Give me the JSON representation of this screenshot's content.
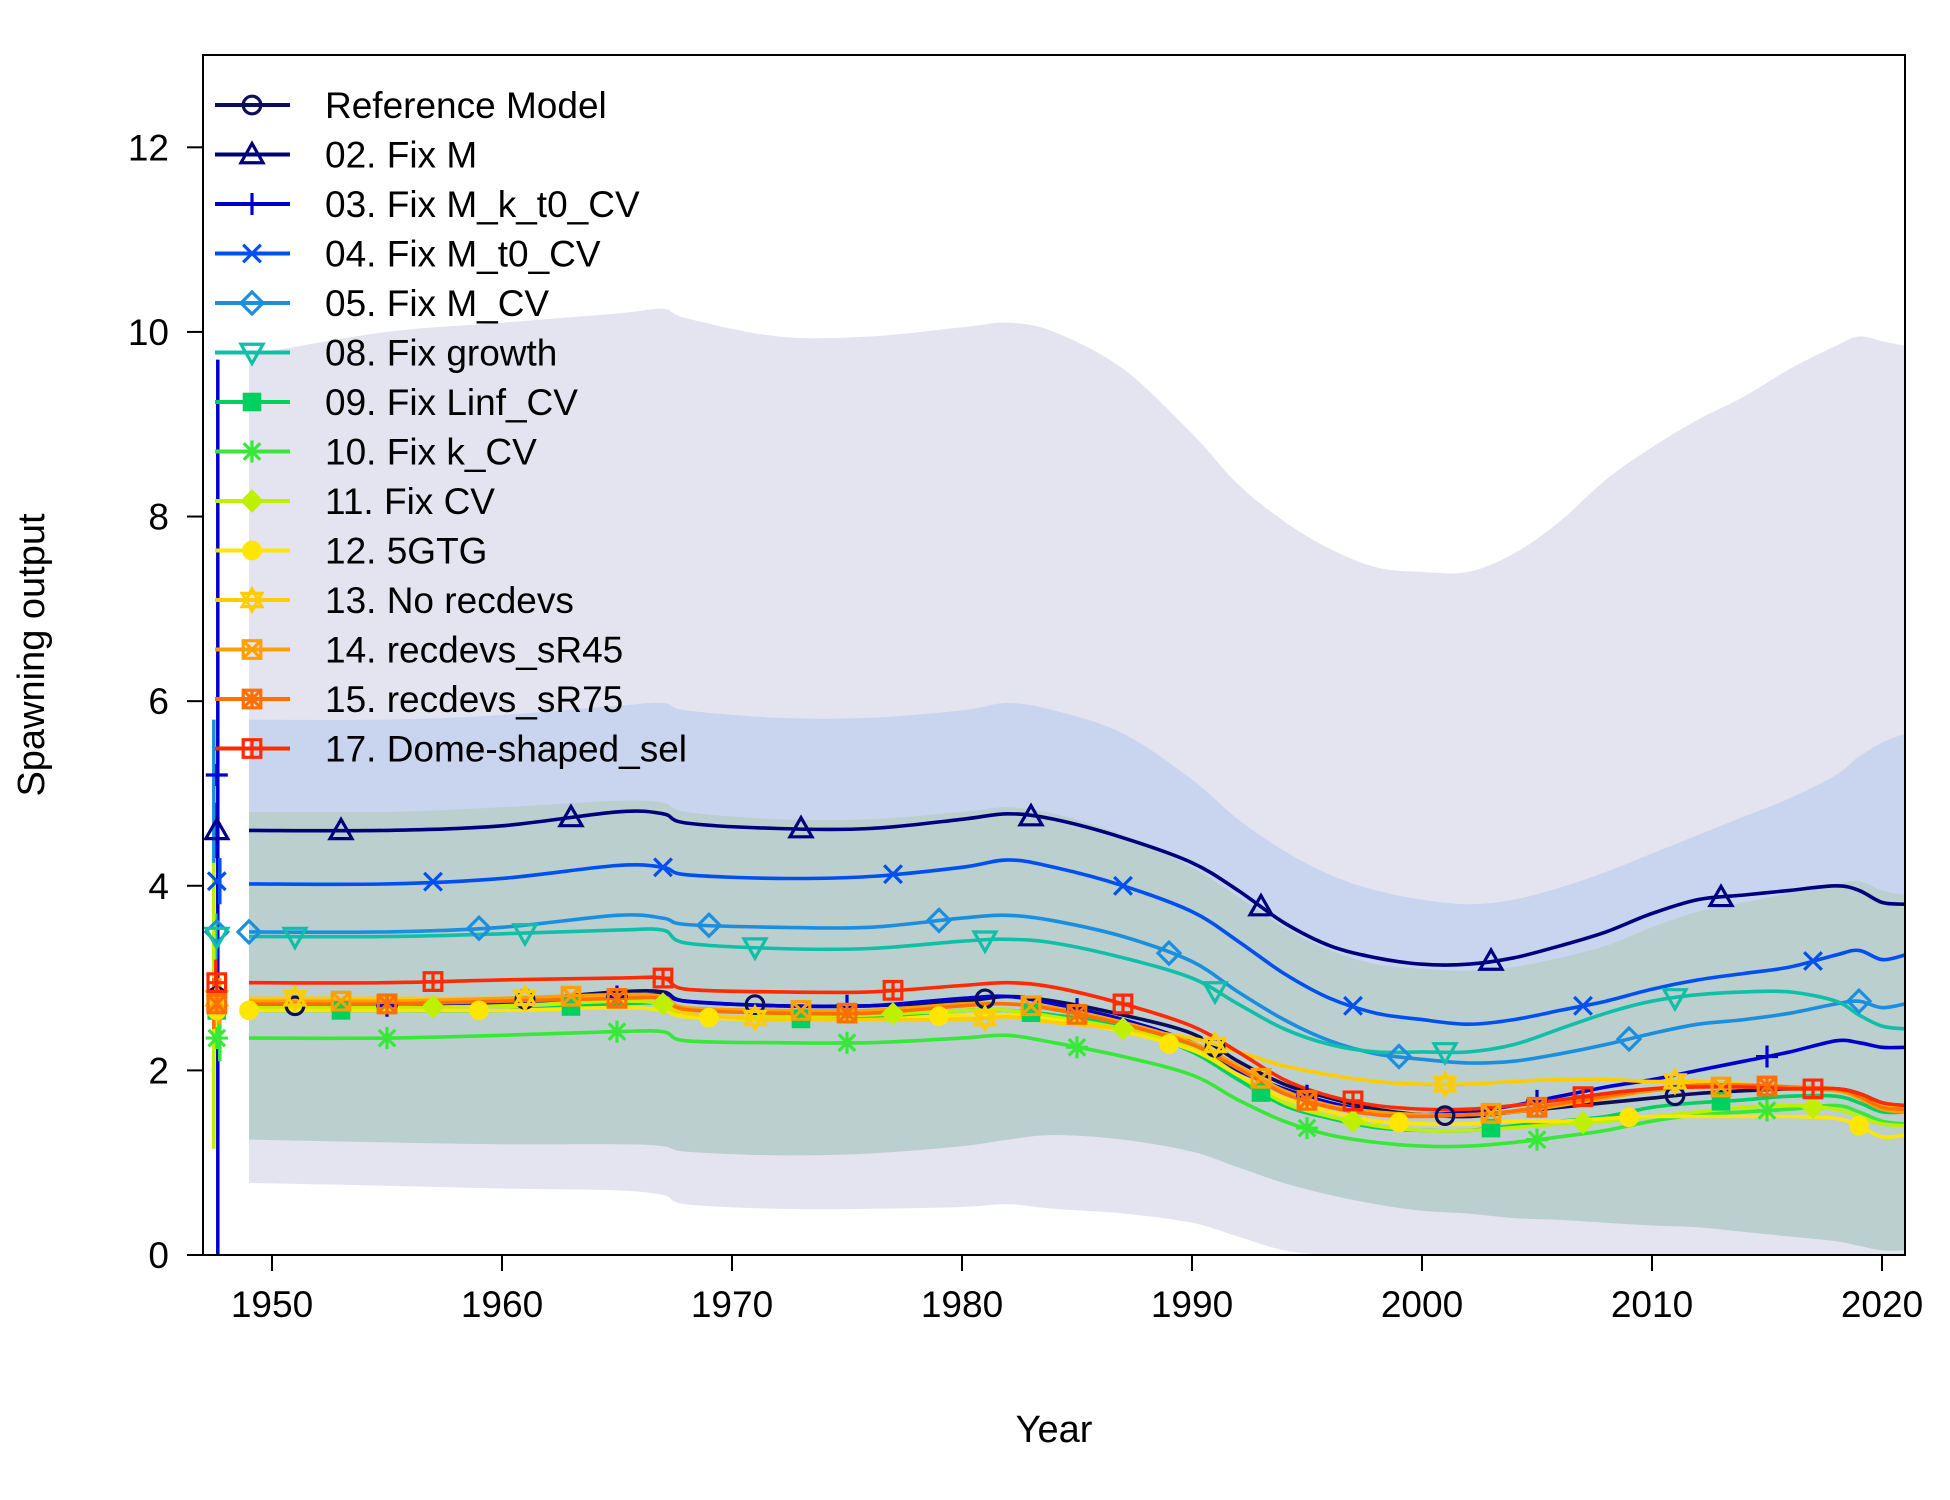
{
  "chart_data": {
    "type": "line",
    "title": "",
    "xlabel": "Year",
    "ylabel": "Spawning output",
    "xlim": [
      1947,
      2021
    ],
    "ylim": [
      0,
      13
    ],
    "xticks": [
      "1950",
      "1960",
      "1970",
      "1980",
      "1990",
      "2000",
      "2010",
      "2020"
    ],
    "yticks": [
      "0",
      "2",
      "4",
      "6",
      "8",
      "10",
      "12"
    ],
    "grid": false,
    "legend_position": "top-left",
    "x": [
      1949,
      1955,
      1960,
      1965,
      1967,
      1968,
      1972,
      1976,
      1980,
      1982,
      1984,
      1987,
      1990,
      1992,
      1994,
      1996,
      1998,
      2000,
      2002,
      2004,
      2006,
      2008,
      2010,
      2012,
      2014,
      2016,
      2018,
      2019,
      2020,
      2021
    ],
    "series": [
      {
        "name": "Reference Model",
        "color": "#0d0d5e",
        "marker": "circle",
        "initial": 2.8,
        "init_lo": 2.6,
        "init_hi": 3.0,
        "values": [
          2.7,
          2.7,
          2.75,
          2.85,
          2.85,
          2.75,
          2.7,
          2.7,
          2.75,
          2.8,
          2.75,
          2.6,
          2.4,
          2.1,
          1.85,
          1.7,
          1.58,
          1.52,
          1.5,
          1.55,
          1.6,
          1.65,
          1.7,
          1.75,
          1.78,
          1.8,
          1.8,
          1.75,
          1.65,
          1.6
        ]
      },
      {
        "name": "02. Fix M",
        "color": "#00007f",
        "marker": "triangle",
        "initial": 4.6,
        "init_lo": 4.3,
        "init_hi": 4.9,
        "values": [
          4.6,
          4.6,
          4.65,
          4.8,
          4.78,
          4.68,
          4.62,
          4.62,
          4.72,
          4.78,
          4.72,
          4.52,
          4.25,
          3.95,
          3.6,
          3.35,
          3.22,
          3.15,
          3.15,
          3.22,
          3.35,
          3.5,
          3.7,
          3.85,
          3.9,
          3.95,
          4.0,
          3.95,
          3.82,
          3.8
        ]
      },
      {
        "name": "03. Fix M_k_t0_CV",
        "color": "#0000cc",
        "marker": "plus",
        "initial": 5.2,
        "init_lo": 0,
        "init_hi": 9.7,
        "values": [
          2.7,
          2.7,
          2.72,
          2.8,
          2.82,
          2.75,
          2.7,
          2.7,
          2.78,
          2.8,
          2.72,
          2.55,
          2.3,
          2.0,
          1.8,
          1.65,
          1.55,
          1.52,
          1.55,
          1.62,
          1.72,
          1.82,
          1.9,
          2.0,
          2.1,
          2.2,
          2.32,
          2.3,
          2.25,
          2.25
        ]
      },
      {
        "name": "04. Fix M_t0_CV",
        "color": "#0050f0",
        "marker": "cross",
        "initial": 4.05,
        "init_lo": 3.8,
        "init_hi": 4.3,
        "values": [
          4.02,
          4.02,
          4.08,
          4.22,
          4.2,
          4.12,
          4.08,
          4.1,
          4.2,
          4.28,
          4.2,
          4.0,
          3.72,
          3.4,
          3.05,
          2.78,
          2.62,
          2.55,
          2.5,
          2.55,
          2.65,
          2.75,
          2.88,
          2.98,
          3.05,
          3.12,
          3.25,
          3.3,
          3.2,
          3.25
        ]
      },
      {
        "name": "05. Fix M_CV",
        "color": "#1a8fe0",
        "marker": "diamond",
        "initial": 3.5,
        "init_lo": 1.2,
        "init_hi": 5.8,
        "values": [
          3.5,
          3.5,
          3.55,
          3.68,
          3.65,
          3.58,
          3.55,
          3.55,
          3.65,
          3.68,
          3.62,
          3.45,
          3.18,
          2.85,
          2.55,
          2.32,
          2.18,
          2.12,
          2.08,
          2.1,
          2.18,
          2.28,
          2.4,
          2.5,
          2.55,
          2.62,
          2.72,
          2.75,
          2.68,
          2.72
        ]
      },
      {
        "name": "08. Fix growth",
        "color": "#10bfa8",
        "marker": "triangle-down",
        "initial": 3.45,
        "init_lo": 3.2,
        "init_hi": 3.7,
        "values": [
          3.45,
          3.45,
          3.48,
          3.52,
          3.52,
          3.38,
          3.32,
          3.32,
          3.4,
          3.42,
          3.38,
          3.22,
          3.0,
          2.72,
          2.45,
          2.28,
          2.2,
          2.2,
          2.2,
          2.28,
          2.45,
          2.62,
          2.75,
          2.82,
          2.85,
          2.85,
          2.75,
          2.6,
          2.48,
          2.45
        ]
      },
      {
        "name": "09. Fix Linf_CV",
        "color": "#00d060",
        "marker": "square",
        "initial": 2.65,
        "init_lo": 2.4,
        "init_hi": 2.9,
        "values": [
          2.65,
          2.65,
          2.65,
          2.72,
          2.72,
          2.6,
          2.55,
          2.58,
          2.65,
          2.65,
          2.6,
          2.48,
          2.2,
          1.9,
          1.62,
          1.48,
          1.38,
          1.35,
          1.35,
          1.4,
          1.45,
          1.5,
          1.6,
          1.65,
          1.68,
          1.72,
          1.72,
          1.65,
          1.55,
          1.55
        ]
      },
      {
        "name": "10. Fix k_CV",
        "color": "#38e838",
        "marker": "asterisk",
        "initial": 2.35,
        "init_lo": 2.1,
        "init_hi": 2.6,
        "values": [
          2.35,
          2.35,
          2.38,
          2.42,
          2.42,
          2.32,
          2.3,
          2.3,
          2.35,
          2.38,
          2.3,
          2.15,
          1.95,
          1.68,
          1.45,
          1.3,
          1.22,
          1.18,
          1.18,
          1.22,
          1.28,
          1.35,
          1.45,
          1.52,
          1.55,
          1.58,
          1.62,
          1.55,
          1.45,
          1.42
        ]
      },
      {
        "name": "11. Fix CV",
        "color": "#bff000",
        "marker": "diamond-filled",
        "initial": 2.7,
        "init_lo": 1.15,
        "init_hi": 4.25,
        "values": [
          2.68,
          2.68,
          2.7,
          2.75,
          2.72,
          2.6,
          2.58,
          2.6,
          2.65,
          2.65,
          2.58,
          2.45,
          2.25,
          1.95,
          1.65,
          1.5,
          1.4,
          1.35,
          1.35,
          1.38,
          1.42,
          1.45,
          1.5,
          1.55,
          1.6,
          1.62,
          1.58,
          1.5,
          1.42,
          1.4
        ]
      },
      {
        "name": "12. 5GTG",
        "color": "#ffe600",
        "marker": "circle-filled",
        "initial": 2.65,
        "init_lo": 2.4,
        "init_hi": 2.9,
        "values": [
          2.65,
          2.65,
          2.65,
          2.68,
          2.65,
          2.58,
          2.55,
          2.55,
          2.6,
          2.6,
          2.55,
          2.42,
          2.22,
          1.95,
          1.7,
          1.55,
          1.45,
          1.42,
          1.42,
          1.45,
          1.45,
          1.48,
          1.5,
          1.5,
          1.5,
          1.5,
          1.48,
          1.4,
          1.28,
          1.3
        ]
      },
      {
        "name": "13. No recdevs",
        "color": "#ffcc00",
        "marker": "star",
        "initial": 2.78,
        "init_lo": 2.55,
        "init_hi": 3.0,
        "values": [
          2.78,
          2.78,
          2.78,
          2.8,
          2.78,
          2.62,
          2.55,
          2.55,
          2.55,
          2.58,
          2.52,
          2.45,
          2.35,
          2.2,
          2.05,
          1.95,
          1.88,
          1.85,
          1.85,
          1.88,
          1.9,
          1.9,
          1.88,
          1.88,
          1.85,
          1.82,
          1.78,
          1.72,
          1.62,
          1.6
        ]
      },
      {
        "name": "14. recdevs_sR45",
        "color": "#ffa000",
        "marker": "square-cross",
        "initial": 2.75,
        "init_lo": 2.5,
        "init_hi": 3.0,
        "values": [
          2.75,
          2.75,
          2.78,
          2.82,
          2.8,
          2.68,
          2.65,
          2.65,
          2.72,
          2.72,
          2.68,
          2.52,
          2.3,
          2.05,
          1.78,
          1.62,
          1.55,
          1.52,
          1.52,
          1.55,
          1.62,
          1.7,
          1.78,
          1.82,
          1.82,
          1.8,
          1.78,
          1.7,
          1.58,
          1.55
        ]
      },
      {
        "name": "15. recdevs_sR75",
        "color": "#ff7000",
        "marker": "square-asterisk",
        "initial": 2.72,
        "init_lo": 2.45,
        "init_hi": 3.0,
        "values": [
          2.72,
          2.72,
          2.75,
          2.78,
          2.78,
          2.66,
          2.62,
          2.62,
          2.7,
          2.72,
          2.66,
          2.5,
          2.28,
          2.02,
          1.75,
          1.6,
          1.52,
          1.5,
          1.52,
          1.56,
          1.64,
          1.72,
          1.8,
          1.84,
          1.84,
          1.82,
          1.8,
          1.72,
          1.6,
          1.58
        ]
      },
      {
        "name": "17. Dome-shaped_sel",
        "color": "#ff2a00",
        "marker": "square-plus",
        "initial": 2.95,
        "init_lo": 2.7,
        "init_hi": 3.2,
        "values": [
          2.95,
          2.95,
          2.98,
          3.0,
          3.0,
          2.88,
          2.85,
          2.85,
          2.92,
          2.95,
          2.9,
          2.72,
          2.48,
          2.2,
          1.9,
          1.72,
          1.62,
          1.58,
          1.58,
          1.62,
          1.68,
          1.75,
          1.8,
          1.82,
          1.82,
          1.8,
          1.8,
          1.75,
          1.65,
          1.62
        ]
      }
    ],
    "bands": [
      {
        "name": "",
        "color": "#b7b7d8",
        "opacity": 0.38,
        "upper": [
          9.75,
          10.0,
          10.1,
          10.2,
          10.25,
          10.15,
          9.95,
          9.95,
          10.05,
          10.1,
          10.0,
          9.6,
          8.9,
          8.35,
          7.95,
          7.65,
          7.45,
          7.4,
          7.4,
          7.6,
          7.95,
          8.4,
          8.75,
          9.05,
          9.3,
          9.6,
          9.85,
          9.95,
          9.9,
          9.85
        ],
        "lower": [
          0.78,
          0.75,
          0.72,
          0.7,
          0.65,
          0.55,
          0.5,
          0.5,
          0.52,
          0.55,
          0.5,
          0.45,
          0.35,
          0.2,
          0.05,
          0,
          0,
          0,
          0,
          0,
          0,
          0,
          0,
          0,
          0,
          0,
          0,
          0,
          0,
          0
        ]
      },
      {
        "name": "",
        "color": "#a8c4ee",
        "opacity": 0.45,
        "upper": [
          5.8,
          5.8,
          5.85,
          5.95,
          5.98,
          5.9,
          5.82,
          5.82,
          5.9,
          5.98,
          5.9,
          5.65,
          5.15,
          4.72,
          4.38,
          4.12,
          3.95,
          3.85,
          3.8,
          3.85,
          3.98,
          4.15,
          4.35,
          4.55,
          4.75,
          4.95,
          5.2,
          5.4,
          5.55,
          5.65
        ]
      },
      {
        "name": "",
        "color": "#aac8a8",
        "opacity": 0.45,
        "upper": [
          4.8,
          4.8,
          4.85,
          4.92,
          4.9,
          4.8,
          4.72,
          4.72,
          4.8,
          4.85,
          4.78,
          4.55,
          4.2,
          3.88,
          3.55,
          3.3,
          3.15,
          3.1,
          3.08,
          3.12,
          3.22,
          3.35,
          3.55,
          3.72,
          3.82,
          3.92,
          4.02,
          4.05,
          3.95,
          3.9
        ],
        "lower": [
          1.25,
          1.22,
          1.2,
          1.2,
          1.18,
          1.12,
          1.08,
          1.1,
          1.18,
          1.25,
          1.3,
          1.25,
          1.12,
          0.95,
          0.78,
          0.65,
          0.55,
          0.48,
          0.45,
          0.4,
          0.38,
          0.35,
          0.32,
          0.3,
          0.25,
          0.2,
          0.15,
          0.1,
          0.05,
          0.05
        ]
      }
    ]
  }
}
